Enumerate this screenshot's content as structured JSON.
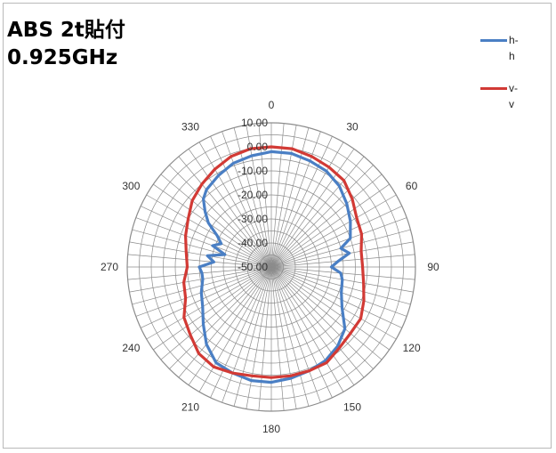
{
  "title": {
    "line1": "ABS 2t貼付",
    "line2": "0.925GHz"
  },
  "colors": {
    "h_h": "#4a7fc4",
    "v_v": "#d23a35",
    "grid": "#8c8c8c"
  },
  "chart_data": {
    "type": "polar-line",
    "r_tick_labels": [
      "10.00",
      "0.00",
      "-10.00",
      "-20.00",
      "-30.00",
      "-40.00",
      "-50.00"
    ],
    "r_range": [
      -50,
      10
    ],
    "angle_labels": [
      "0",
      "30",
      "60",
      "90",
      "120",
      "150",
      "180",
      "210",
      "240",
      "270",
      "300",
      "330"
    ],
    "angle_step_deg": 30,
    "spoke_step_deg": 5,
    "grid": true,
    "legend_position": "top-right",
    "series": [
      {
        "name": "h-h",
        "color": "#4a7fc4",
        "angle_deg": [
          0,
          10,
          20,
          30,
          40,
          50,
          60,
          70,
          75,
          80,
          85,
          90,
          95,
          100,
          110,
          120,
          130,
          140,
          150,
          160,
          170,
          180,
          190,
          200,
          210,
          220,
          230,
          240,
          250,
          260,
          265,
          270,
          275,
          280,
          285,
          290,
          295,
          300,
          305,
          310,
          315,
          320,
          330,
          340,
          350
        ],
        "values_dbi": [
          -2,
          -2,
          -3,
          -4,
          -6,
          -9,
          -12,
          -15,
          -20,
          -17,
          -22,
          -25,
          -21,
          -20,
          -19,
          -16,
          -10,
          -7,
          -5,
          -4,
          -3,
          -2,
          -2,
          -3,
          -4,
          -8,
          -13,
          -17,
          -19,
          -21,
          -21,
          -20,
          -26,
          -23,
          -30,
          -24,
          -27,
          -24,
          -18,
          -14,
          -10,
          -8,
          -6,
          -4,
          -3
        ]
      },
      {
        "name": "v-v",
        "color": "#d23a35",
        "angle_deg": [
          0,
          10,
          20,
          30,
          40,
          50,
          60,
          70,
          80,
          90,
          100,
          110,
          120,
          130,
          140,
          150,
          160,
          170,
          180,
          190,
          200,
          210,
          220,
          230,
          240,
          250,
          260,
          270,
          280,
          290,
          300,
          310,
          320,
          330,
          340,
          350
        ],
        "values_dbi": [
          0,
          0,
          -1,
          -2,
          -3,
          -6,
          -9,
          -10,
          -12,
          -12,
          -11,
          -9,
          -7,
          -7,
          -6,
          -4,
          -4,
          -4,
          -4,
          -4,
          -3,
          -2,
          -3,
          -6,
          -8,
          -12,
          -13,
          -15,
          -14,
          -12,
          -10,
          -7,
          -5,
          -3,
          -1,
          0
        ]
      }
    ]
  }
}
